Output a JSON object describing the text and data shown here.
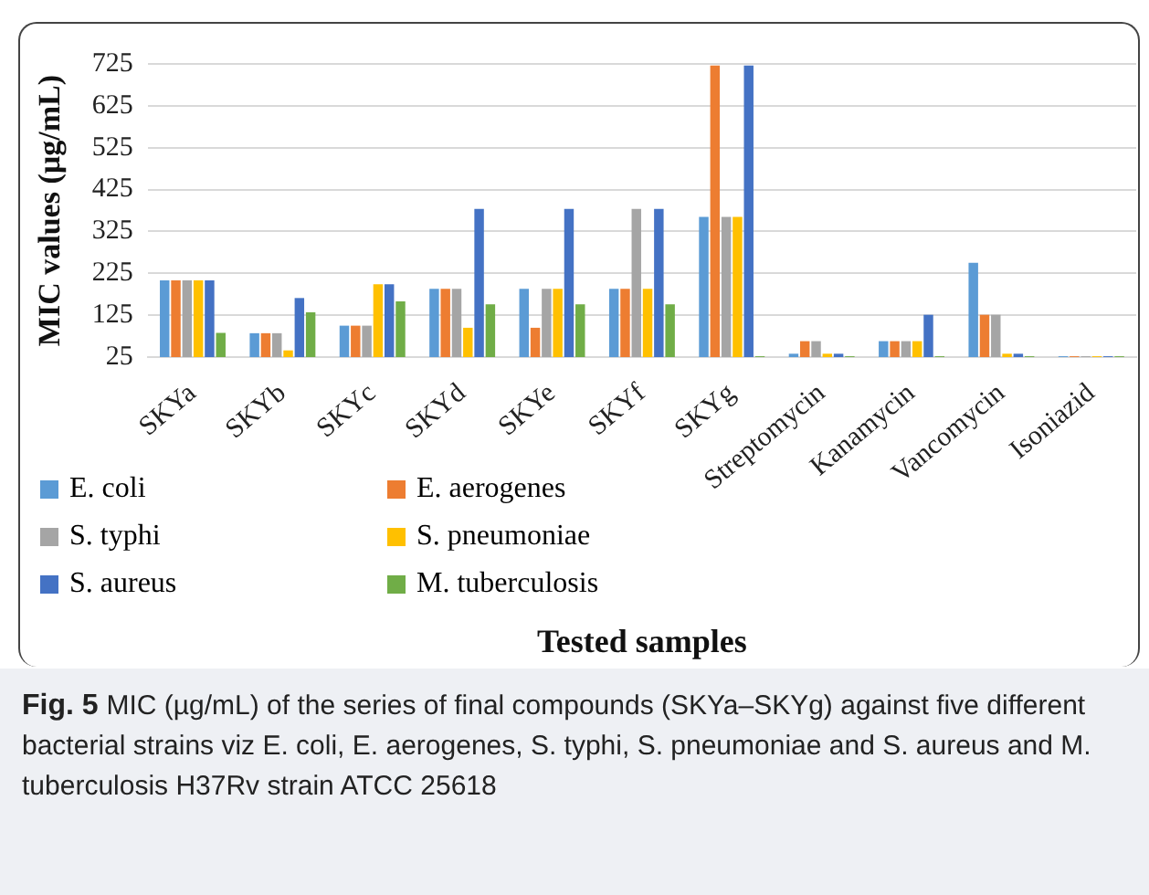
{
  "chart_data": {
    "type": "bar",
    "xlabel": "Tested samples",
    "ylabel": "MIC values (µg/mL)",
    "categories": [
      "SKYa",
      "SKYb",
      "SKYc",
      "SKYd",
      "SKYe",
      "SKYf",
      "SKYg",
      "Streptomycin",
      "Kanamycin",
      "Vancomycin",
      "Isoniazid"
    ],
    "series": [
      {
        "name": "E. coli",
        "color": "#5b9bd5",
        "values": [
          208,
          82,
          100,
          188,
          188,
          188,
          360,
          33,
          63,
          250,
          27
        ]
      },
      {
        "name": "E. aerogenes",
        "color": "#ed7d31",
        "values": [
          208,
          82,
          100,
          188,
          95,
          188,
          721,
          63,
          63,
          126,
          27
        ]
      },
      {
        "name": "S. typhi",
        "color": "#a5a5a5",
        "values": [
          208,
          82,
          100,
          188,
          188,
          379,
          360,
          63,
          63,
          126,
          27
        ]
      },
      {
        "name": "S. pneumoniae",
        "color": "#ffc000",
        "values": [
          208,
          41,
          199,
          95,
          188,
          188,
          360,
          33,
          63,
          33,
          27
        ]
      },
      {
        "name": "S. aureus",
        "color": "#4472c4",
        "values": [
          208,
          166,
          199,
          379,
          379,
          379,
          721,
          33,
          126,
          33,
          27
        ]
      },
      {
        "name": "M. tuberculosis",
        "color": "#70ad47",
        "values": [
          83,
          132,
          158,
          151,
          151,
          151,
          27,
          27,
          27,
          27,
          27
        ]
      }
    ],
    "ylim": [
      25,
      725
    ],
    "yticks": [
      25,
      125,
      225,
      325,
      425,
      525,
      625,
      725
    ],
    "grid": "y",
    "legend": "bottom",
    "annotations": [
      "Fig. 5",
      "MIC (µg/mL) of the series of final compounds (SKYa–SKYg) against five different bacterial strains viz E. coli, E. aerogenes, S. typhi, S. pneumoniae and S. aureus and M. tuberculosis H37Rv strain ATCC 25618"
    ]
  }
}
